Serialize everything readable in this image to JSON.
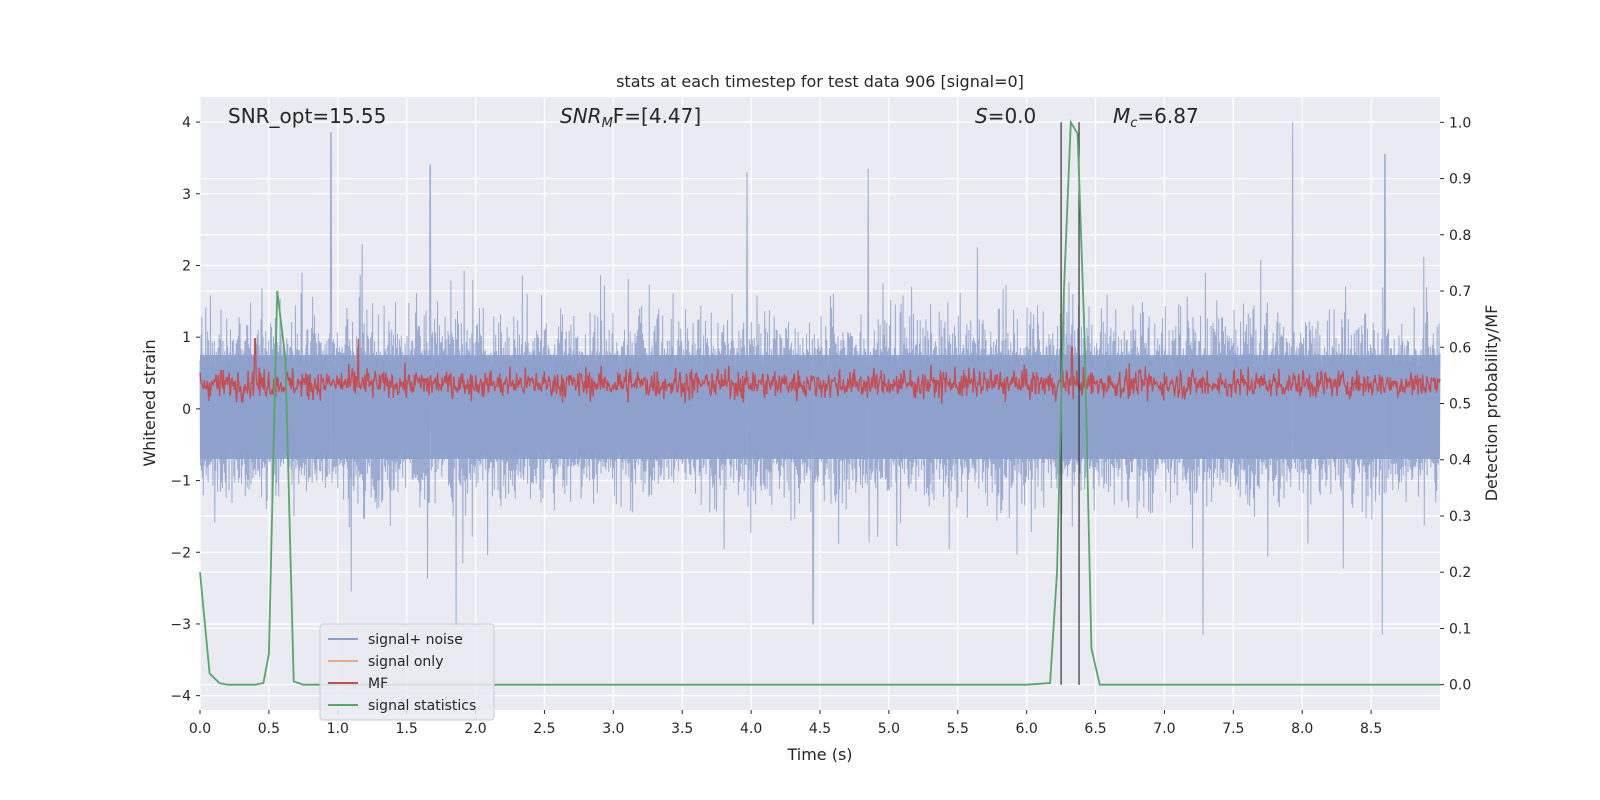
{
  "chart_data": {
    "type": "line",
    "title": "stats at each timestep for test data 906 [signal=0]",
    "xlabel": "Time (s)",
    "ylabel": "Whitened strain",
    "y2label": "Detection probability/MF",
    "xlim": [
      0.0,
      9.0
    ],
    "ylim": [
      -4.2,
      4.35
    ],
    "y2lim": [
      -0.045,
      1.045
    ],
    "x_ticks": [
      0.0,
      0.5,
      1.0,
      1.5,
      2.0,
      2.5,
      3.0,
      3.5,
      4.0,
      4.5,
      5.0,
      5.5,
      6.0,
      6.5,
      7.0,
      7.5,
      8.0,
      8.5
    ],
    "x_tick_labels": [
      "0.0",
      "0.5",
      "1.0",
      "1.5",
      "2.0",
      "2.5",
      "3.0",
      "3.5",
      "4.0",
      "4.5",
      "5.0",
      "5.5",
      "6.0",
      "6.5",
      "7.0",
      "7.5",
      "8.0",
      "8.5"
    ],
    "y_ticks": [
      4,
      3,
      2,
      1,
      0,
      -1,
      -2,
      -3,
      -4
    ],
    "y_tick_labels": [
      "4",
      "3",
      "2",
      "1",
      "0",
      "−1",
      "−2",
      "−3",
      "−4"
    ],
    "y2_ticks": [
      1.0,
      0.9,
      0.8,
      0.7,
      0.6,
      0.5,
      0.4,
      0.3,
      0.2,
      0.1,
      0.0
    ],
    "y2_tick_labels": [
      "1.0",
      "0.9",
      "0.8",
      "0.7",
      "0.6",
      "0.5",
      "0.4",
      "0.3",
      "0.2",
      "0.1",
      "0.0"
    ],
    "grid": true,
    "legend_position": "lower-left",
    "annotations": {
      "snr_opt": "SNR_opt=15.55",
      "snr_mf_main": "SNR",
      "snr_mf_sub": "M",
      "snr_mf_rest": "F=[4.47]",
      "s_main": "S",
      "s_rest": "=0.0",
      "mc_main": "M",
      "mc_sub": "c",
      "mc_rest": "=6.87"
    },
    "vlines_x": [
      6.25,
      6.38
    ],
    "series": [
      {
        "name": "signal+ noise",
        "color": "#8da0cb",
        "axis": "left",
        "description_values": "noise band approx -1.5 to 2, extremes -3.2 to 3.9",
        "peaks": [
          {
            "x": 0.95,
            "y": 3.85
          },
          {
            "x": 1.67,
            "y": 3.4
          },
          {
            "x": 4.85,
            "y": 3.35
          },
          {
            "x": 7.93,
            "y": 4.0
          },
          {
            "x": 8.6,
            "y": 3.55
          },
          {
            "x": 3.97,
            "y": 3.3
          },
          {
            "x": 4.45,
            "y": -3.0
          },
          {
            "x": 7.28,
            "y": -3.15
          },
          {
            "x": 8.58,
            "y": -3.15
          },
          {
            "x": 1.86,
            "y": -3.05
          }
        ]
      },
      {
        "name": "signal only",
        "color": "#e8a98b",
        "axis": "left",
        "values_note": "none visible"
      },
      {
        "name": "MF",
        "color": "#c44e52",
        "axis": "right",
        "range": [
          0.49,
          0.62
        ],
        "peaks": [
          {
            "x": 0.4,
            "y": 0.615
          },
          {
            "x": 1.15,
            "y": 0.615
          },
          {
            "x": 6.33,
            "y": 0.6
          }
        ]
      },
      {
        "name": "signal statistics",
        "color": "#55a868",
        "axis": "right",
        "x": [
          0.0,
          0.07,
          0.14,
          0.2,
          0.3,
          0.4,
          0.46,
          0.5,
          0.56,
          0.62,
          0.68,
          0.75,
          1.0,
          2.0,
          3.0,
          4.0,
          5.0,
          6.0,
          6.17,
          6.22,
          6.27,
          6.32,
          6.37,
          6.42,
          6.47,
          6.53,
          7.0,
          8.0,
          9.0
        ],
        "values": [
          0.2,
          0.02,
          0.003,
          0.0,
          0.0,
          0.0,
          0.003,
          0.055,
          0.7,
          0.58,
          0.006,
          0.0,
          0.0,
          0.0,
          0.0,
          0.0,
          0.0,
          0.0,
          0.003,
          0.2,
          0.7,
          1.0,
          0.98,
          0.62,
          0.065,
          0.0,
          0.0,
          0.0,
          0.0
        ]
      }
    ]
  }
}
